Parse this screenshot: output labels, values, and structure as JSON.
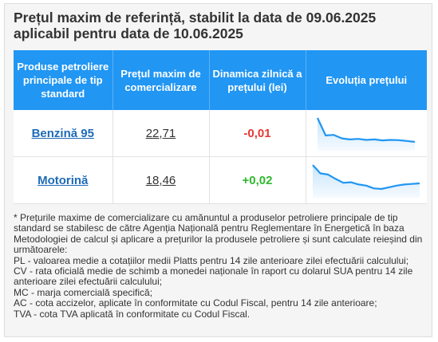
{
  "title": "Prețul maxim de referință, stabilit la data de 09.06.2025 aplicabil pentru data de 10.06.2025",
  "colors": {
    "header_bg": "#2196f3",
    "link": "#1e6bb8",
    "negative": "#e53935",
    "positive": "#2eb82e",
    "spark_line": "#2196f3",
    "spark_fill": "#bfe0fb"
  },
  "table": {
    "headers": [
      "Produse petroliere principale de tip standard",
      "Prețul maxim de comercializare",
      "Dinamica zilnică a prețului (lei)",
      "Evoluția prețului"
    ],
    "rows": [
      {
        "product": "Benzină 95",
        "price": "22,71",
        "change": "-0,01",
        "trend": "negative",
        "sparkline": [
          24,
          20.5,
          20.6,
          19.9,
          19.7,
          19.8,
          19.6,
          19.7,
          19.5,
          19.6,
          19.55,
          19.4,
          19.2
        ]
      },
      {
        "product": "Motorină",
        "price": "18,46",
        "change": "+0,02",
        "trend": "positive",
        "sparkline": [
          24,
          22.5,
          22.3,
          21.5,
          20.8,
          20.9,
          20.5,
          20.3,
          19.8,
          19.7,
          20.0,
          20.3,
          20.5,
          20.6,
          20.7
        ]
      }
    ]
  },
  "notes": [
    "* Prețurile maxime de comercializare cu amănuntul a produselor petroliere principale de tip standard se stabilesc de către Agenția Națională pentru Reglementare în Energetică în baza Metodologiei de calcul și aplicare a prețurilor la produsele petroliere și sunt calculate reieșind din următoarele:",
    "PL - valoarea medie a cotațiilor medii Platts pentru 14 zile anterioare zilei efectuării calculului;",
    "CV - rata oficială medie de schimb a monedei naționale în raport cu dolarul SUA pentru 14 zile anterioare zilei efectuării calculului;",
    "MC - marja comercială specifică;",
    "AC - cota accizelor, aplicate în conformitate cu Codul Fiscal, pentru 14 zile anterioare;",
    "TVA - cota TVA aplicată în conformitate cu Codul Fiscal."
  ]
}
